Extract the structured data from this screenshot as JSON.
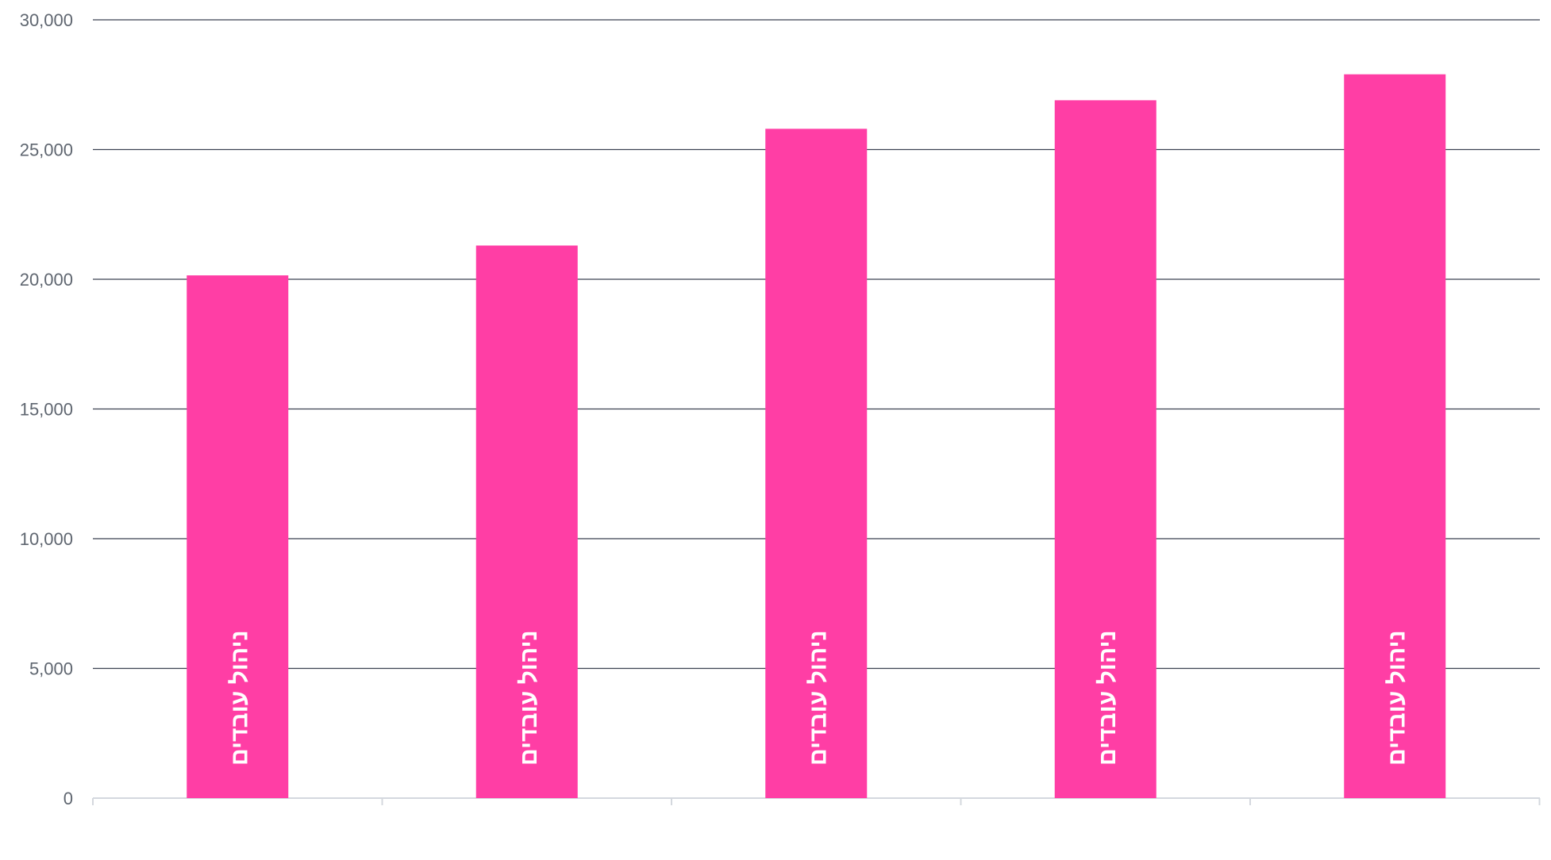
{
  "chart_data": {
    "type": "bar",
    "title": "",
    "xlabel": "",
    "ylabel": "",
    "ylim": [
      0,
      30000
    ],
    "yticks": [
      0,
      5000,
      10000,
      15000,
      20000,
      25000,
      30000
    ],
    "ytick_labels": [
      "0",
      "5,000",
      "10,000",
      "15,000",
      "20,000",
      "25,000",
      "30,000"
    ],
    "grid": true,
    "legend": "none",
    "categories": [
      "",
      "",
      "",
      "",
      ""
    ],
    "series": [
      {
        "values": [
          20150,
          21300,
          25800,
          26900,
          27900
        ],
        "bar_labels": [
          "ניהול עובדים",
          "ניהול עובדים",
          "ניהול עובדים",
          "ניהול עובדים",
          "ניהול עובדים"
        ],
        "color": "#ff3ea5"
      }
    ],
    "colors": {
      "bar": "#ff3ea5",
      "gridline": "#3b4252",
      "axis": "#d4d8de",
      "tick_text": "#5f6670",
      "bar_text": "#ffffff"
    }
  }
}
